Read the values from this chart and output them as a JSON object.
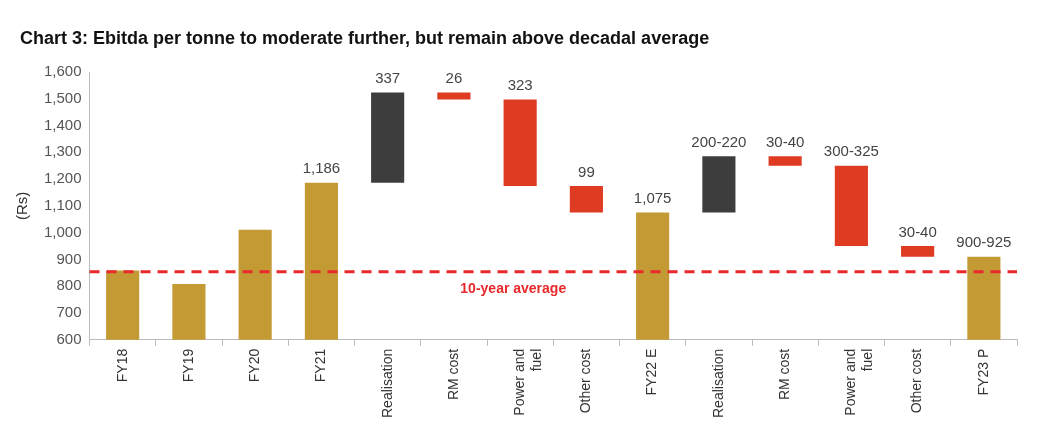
{
  "chart_data": {
    "type": "bar",
    "title": "Chart 3: Ebitda per tonne to moderate further, but remain above decadal average",
    "ylabel": "(Rs)",
    "categories": [
      "FY18",
      "FY19",
      "FY20",
      "FY21",
      "Realisation",
      "RM cost",
      "Power and fuel",
      "Other cost",
      "FY22 E",
      "Realisation",
      "RM cost",
      "Power and fuel",
      "Other cost",
      "FY23 P"
    ],
    "values": [
      859,
      808,
      1011,
      1186,
      337,
      -26,
      -323,
      -99,
      1075,
      210,
      -35,
      -300,
      -40,
      910
    ],
    "base": [
      null,
      null,
      null,
      null,
      1186,
      1523,
      1497,
      1174,
      null,
      1075,
      1285,
      1250,
      950,
      null
    ],
    "colors": [
      "#c39a34",
      "#c39a34",
      "#c39a34",
      "#c39a34",
      "#3d3d3d",
      "#df3a22",
      "#df3a22",
      "#df3a22",
      "#c39a34",
      "#3d3d3d",
      "#df3a22",
      "#df3a22",
      "#df3a22",
      "#c39a34"
    ],
    "value_labels": [
      null,
      null,
      null,
      "1,186",
      "337",
      "26",
      "323",
      "99",
      "1,075",
      "200-220",
      "30-40",
      "300-325",
      "30-40",
      "900-925"
    ],
    "ylim": [
      600,
      1600
    ],
    "yticks": [
      600,
      700,
      800,
      900,
      {
        "value": 1000,
        "label": "1,000"
      },
      {
        "value": 1100,
        "label": "1,100"
      },
      {
        "value": 1200,
        "label": "1,200"
      },
      {
        "value": 1300,
        "label": "1,300"
      },
      {
        "value": 1400,
        "label": "1,400"
      },
      {
        "value": 1500,
        "label": "1,500"
      },
      {
        "value": 1600,
        "label": "1,600"
      }
    ],
    "ref_lines": [
      {
        "axis": "y",
        "value": 854,
        "label": "10-year average",
        "color": "#e8282a",
        "line_style": "dashed"
      }
    ],
    "grid": false,
    "legend": false
  }
}
